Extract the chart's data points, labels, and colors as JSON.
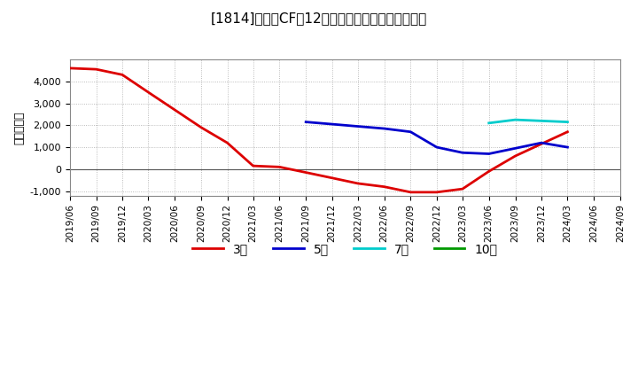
{
  "title": "[1814]　営業CFの12か月移動合計の平均値の推移",
  "ylabel": "（百万円）",
  "background_color": "#ffffff",
  "plot_bg_color": "#ffffff",
  "grid_color": "#aaaaaa",
  "ylim": [
    -1200,
    5000
  ],
  "yticks": [
    -1000,
    0,
    1000,
    2000,
    3000,
    4000
  ],
  "series": {
    "3year": {
      "label": "3年",
      "color": "#dd0000",
      "dates": [
        "2019-06",
        "2019-09",
        "2019-12",
        "2020-03",
        "2020-06",
        "2020-09",
        "2020-12",
        "2021-03",
        "2021-06",
        "2021-09",
        "2021-12",
        "2022-03",
        "2022-06",
        "2022-09",
        "2022-12",
        "2023-03",
        "2023-06",
        "2023-09",
        "2023-12",
        "2024-03",
        "2024-06"
      ],
      "values": [
        4600,
        4550,
        4300,
        3500,
        2700,
        1900,
        1200,
        150,
        100,
        -150,
        -400,
        -650,
        -800,
        -1050,
        -1050,
        -900,
        -100,
        600,
        1150,
        1700,
        null
      ]
    },
    "5year": {
      "label": "5年",
      "color": "#0000cc",
      "dates": [
        "2021-09",
        "2021-12",
        "2022-03",
        "2022-06",
        "2022-09",
        "2022-12",
        "2023-03",
        "2023-06",
        "2023-09",
        "2023-12",
        "2024-03",
        "2024-06"
      ],
      "values": [
        2150,
        2050,
        1950,
        1850,
        1700,
        1000,
        750,
        700,
        950,
        1200,
        1000,
        null
      ]
    },
    "7year": {
      "label": "7年",
      "color": "#00cccc",
      "dates": [
        "2023-06",
        "2023-09",
        "2023-12",
        "2024-03",
        "2024-06"
      ],
      "values": [
        2100,
        2250,
        2200,
        2150,
        null
      ]
    },
    "10year": {
      "label": "10年",
      "color": "#009900",
      "dates": [],
      "values": []
    }
  },
  "xtick_dates": [
    "2019-06",
    "2019-09",
    "2019-12",
    "2020-03",
    "2020-06",
    "2020-09",
    "2020-12",
    "2021-03",
    "2021-06",
    "2021-09",
    "2021-12",
    "2022-03",
    "2022-06",
    "2022-09",
    "2022-12",
    "2023-03",
    "2023-06",
    "2023-09",
    "2023-12",
    "2024-03",
    "2024-06",
    "2024-09"
  ],
  "xtick_labels": [
    "2019/06",
    "2019/09",
    "2019/12",
    "2020/03",
    "2020/06",
    "2020/09",
    "2020/12",
    "2021/03",
    "2021/06",
    "2021/09",
    "2021/12",
    "2022/03",
    "2022/06",
    "2022/09",
    "2022/12",
    "2023/03",
    "2023/06",
    "2023/09",
    "2023/12",
    "2024/03",
    "2024/06",
    "2024/09"
  ],
  "legend_entries": [
    "3年",
    "5年",
    "7年",
    "10年"
  ],
  "legend_colors": [
    "#dd0000",
    "#0000cc",
    "#00cccc",
    "#009900"
  ]
}
